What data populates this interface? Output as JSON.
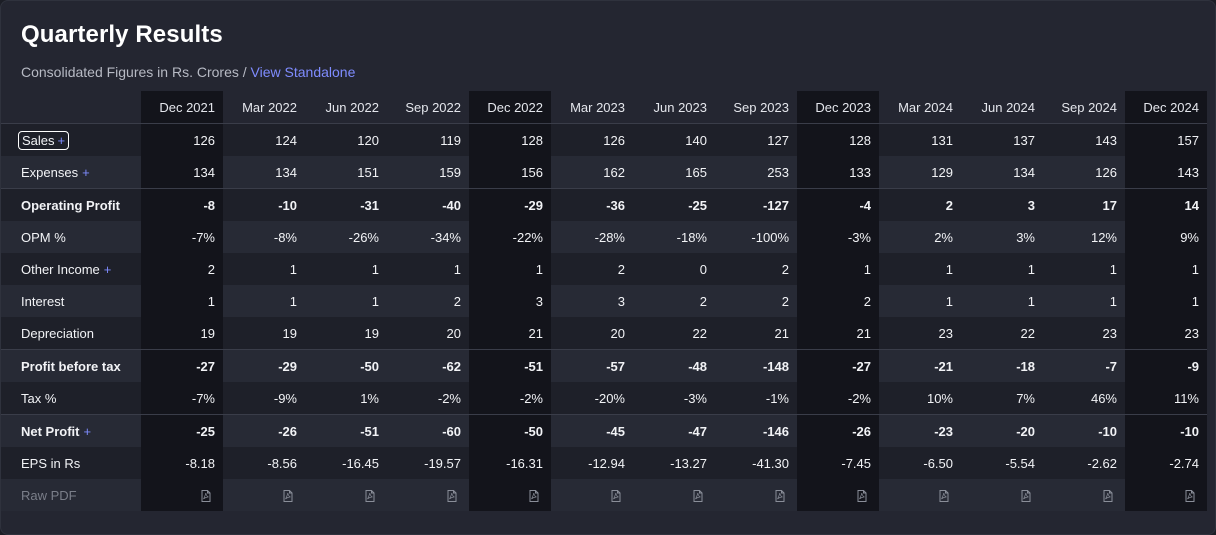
{
  "title": "Quarterly Results",
  "subtitle": {
    "text": "Consolidated Figures in Rs. Crores / ",
    "link": "View Standalone"
  },
  "quarters": [
    "Dec 2021",
    "Mar 2022",
    "Jun 2022",
    "Sep 2022",
    "Dec 2022",
    "Mar 2023",
    "Jun 2023",
    "Sep 2023",
    "Dec 2023",
    "Mar 2024",
    "Jun 2024",
    "Sep 2024",
    "Dec 2024"
  ],
  "highlighted_quarters": [
    "Dec 2021",
    "Dec 2022",
    "Dec 2023",
    "Dec 2024"
  ],
  "rows": [
    {
      "label": "Sales",
      "expandable": true,
      "bold": false,
      "values": [
        "126",
        "124",
        "120",
        "119",
        "128",
        "126",
        "140",
        "127",
        "128",
        "131",
        "137",
        "143",
        "157"
      ]
    },
    {
      "label": "Expenses",
      "expandable": true,
      "bold": false,
      "values": [
        "134",
        "134",
        "151",
        "159",
        "156",
        "162",
        "165",
        "253",
        "133",
        "129",
        "134",
        "126",
        "143"
      ]
    },
    {
      "label": "Operating Profit",
      "expandable": false,
      "bold": true,
      "values": [
        "-8",
        "-10",
        "-31",
        "-40",
        "-29",
        "-36",
        "-25",
        "-127",
        "-4",
        "2",
        "3",
        "17",
        "14"
      ]
    },
    {
      "label": "OPM %",
      "expandable": false,
      "bold": false,
      "values": [
        "-7%",
        "-8%",
        "-26%",
        "-34%",
        "-22%",
        "-28%",
        "-18%",
        "-100%",
        "-3%",
        "2%",
        "3%",
        "12%",
        "9%"
      ]
    },
    {
      "label": "Other Income",
      "expandable": true,
      "bold": false,
      "values": [
        "2",
        "1",
        "1",
        "1",
        "1",
        "2",
        "0",
        "2",
        "1",
        "1",
        "1",
        "1",
        "1"
      ]
    },
    {
      "label": "Interest",
      "expandable": false,
      "bold": false,
      "values": [
        "1",
        "1",
        "1",
        "2",
        "3",
        "3",
        "2",
        "2",
        "2",
        "1",
        "1",
        "1",
        "1"
      ]
    },
    {
      "label": "Depreciation",
      "expandable": false,
      "bold": false,
      "values": [
        "19",
        "19",
        "19",
        "20",
        "21",
        "20",
        "22",
        "21",
        "21",
        "23",
        "22",
        "23",
        "23"
      ]
    },
    {
      "label": "Profit before tax",
      "expandable": false,
      "bold": true,
      "values": [
        "-27",
        "-29",
        "-50",
        "-62",
        "-51",
        "-57",
        "-48",
        "-148",
        "-27",
        "-21",
        "-18",
        "-7",
        "-9"
      ]
    },
    {
      "label": "Tax %",
      "expandable": false,
      "bold": false,
      "values": [
        "-7%",
        "-9%",
        "1%",
        "-2%",
        "-2%",
        "-20%",
        "-3%",
        "-1%",
        "-2%",
        "10%",
        "7%",
        "46%",
        "11%"
      ]
    },
    {
      "label": "Net Profit",
      "expandable": true,
      "bold": true,
      "values": [
        "-25",
        "-26",
        "-51",
        "-60",
        "-50",
        "-45",
        "-47",
        "-146",
        "-26",
        "-23",
        "-20",
        "-10",
        "-10"
      ]
    },
    {
      "label": "EPS in Rs",
      "expandable": false,
      "bold": false,
      "values": [
        "-8.18",
        "-8.56",
        "-16.45",
        "-19.57",
        "-16.31",
        "-12.94",
        "-13.27",
        "-41.30",
        "-7.45",
        "-6.50",
        "-5.54",
        "-2.62",
        "-2.74"
      ]
    }
  ],
  "raw_pdf_label": "Raw PDF",
  "plus_symbol": "+",
  "icons": {
    "pdf": "pdf-file-icon"
  },
  "colors": {
    "accent": "#7f8cff",
    "highlight_column": "#13141b"
  }
}
